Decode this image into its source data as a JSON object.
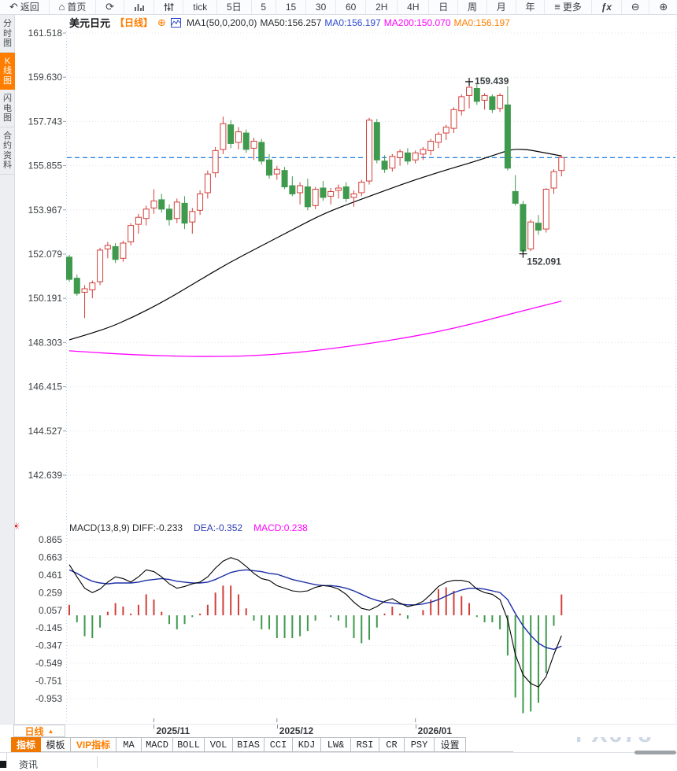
{
  "toolbar": {
    "items": [
      {
        "name": "back",
        "glyph": "↶",
        "label": "返回"
      },
      {
        "name": "home",
        "glyph": "⌂",
        "label": "首页"
      },
      {
        "name": "refresh",
        "glyph": "⟳"
      },
      {
        "name": "chart-bars",
        "glyph": "#bars"
      },
      {
        "name": "indicator-sliders",
        "glyph": "#sliders"
      },
      {
        "name": "interval-tick",
        "label": "tick"
      },
      {
        "name": "interval-5d",
        "label": "5日"
      },
      {
        "name": "interval-5m",
        "label": "5"
      },
      {
        "name": "interval-15m",
        "label": "15"
      },
      {
        "name": "interval-30m",
        "label": "30"
      },
      {
        "name": "interval-60m",
        "label": "60"
      },
      {
        "name": "interval-2h",
        "label": "2H"
      },
      {
        "name": "interval-4h",
        "label": "4H"
      },
      {
        "name": "interval-day",
        "label": "日"
      },
      {
        "name": "interval-week",
        "label": "周"
      },
      {
        "name": "interval-month",
        "label": "月"
      },
      {
        "name": "interval-year",
        "label": "年"
      },
      {
        "name": "more",
        "glyph": "≡",
        "label": "更多"
      },
      {
        "name": "fx-formula",
        "glyph": "#fx"
      },
      {
        "name": "zoom-out",
        "glyph": "⊖"
      },
      {
        "name": "zoom-in",
        "glyph": "⊕"
      }
    ]
  },
  "sidebar": {
    "items": [
      {
        "name": "time-share-chart",
        "label": "分时图",
        "active": false
      },
      {
        "name": "kline-chart",
        "label": "K线图",
        "active": true
      },
      {
        "name": "lightning-chart",
        "label": "闪电图",
        "active": false
      },
      {
        "name": "contract-info",
        "label": "合约资料",
        "active": false
      }
    ]
  },
  "chart_header": {
    "symbol": "美元日元",
    "period": "【日线】",
    "add_icon": "⊕",
    "segments": [
      {
        "text": "MA1(50,0,200,0)",
        "color": "#2b2f33"
      },
      {
        "text": "MA50:156.257",
        "color": "#2b2f33"
      },
      {
        "text": "MA0:156.197",
        "color": "#2f4bd0"
      },
      {
        "text": "MA200:150.070",
        "color": "#ff00ff"
      },
      {
        "text": "MA0:156.197",
        "color": "#ff7e00"
      }
    ]
  },
  "macd_header": {
    "icon": "☀",
    "segments": [
      {
        "text": "MACD(13,8,9) DIFF:-0.233",
        "color": "#2b2f33"
      },
      {
        "text": "DEA:-0.352",
        "color": "#2f3db0"
      },
      {
        "text": "MACD:0.238",
        "color": "#ff00ff"
      }
    ]
  },
  "chart_data": {
    "type": "candlestick",
    "title": "美元日元 日线 (USD/JPY daily with MA50/MA200 and MACD(13,8,9))",
    "y_axis": {
      "labels": [
        "161.518",
        "159.630",
        "157.743",
        "155.855",
        "153.967",
        "152.079",
        "150.191",
        "148.303",
        "146.415",
        "144.527",
        "142.639"
      ],
      "max": 161.518,
      "min": 142.639
    },
    "price_line": 156.197,
    "candles": [
      [
        151.95,
        152.05,
        150.9,
        151.0
      ],
      [
        151.05,
        151.2,
        150.3,
        150.4
      ],
      [
        150.45,
        150.75,
        149.35,
        150.6
      ],
      [
        150.55,
        150.95,
        150.2,
        150.85
      ],
      [
        150.9,
        152.35,
        150.75,
        152.25
      ],
      [
        152.3,
        152.6,
        151.9,
        152.45
      ],
      [
        152.4,
        152.55,
        151.7,
        151.85
      ],
      [
        151.9,
        152.65,
        151.75,
        152.55
      ],
      [
        152.6,
        153.4,
        152.45,
        153.3
      ],
      [
        153.35,
        153.8,
        152.95,
        153.65
      ],
      [
        153.6,
        154.15,
        153.3,
        154.0
      ],
      [
        154.05,
        154.85,
        153.8,
        154.35
      ],
      [
        154.4,
        154.65,
        153.85,
        154.0
      ],
      [
        154.0,
        154.2,
        153.3,
        153.55
      ],
      [
        153.6,
        154.45,
        153.4,
        154.3
      ],
      [
        154.25,
        154.55,
        153.15,
        153.4
      ],
      [
        153.45,
        154.05,
        152.95,
        153.9
      ],
      [
        153.95,
        154.8,
        153.75,
        154.65
      ],
      [
        154.7,
        155.65,
        154.45,
        155.5
      ],
      [
        155.55,
        156.65,
        155.35,
        156.5
      ],
      [
        156.55,
        157.95,
        156.35,
        157.65
      ],
      [
        157.6,
        157.8,
        156.6,
        156.8
      ],
      [
        156.85,
        157.5,
        156.55,
        157.3
      ],
      [
        157.25,
        157.4,
        156.4,
        156.55
      ],
      [
        156.6,
        157.05,
        156.1,
        156.9
      ],
      [
        156.85,
        157.0,
        155.9,
        156.05
      ],
      [
        156.1,
        156.35,
        155.3,
        155.45
      ],
      [
        155.5,
        155.85,
        155.25,
        155.7
      ],
      [
        155.65,
        155.8,
        154.85,
        154.95
      ],
      [
        155.0,
        155.4,
        154.55,
        154.65
      ],
      [
        154.7,
        155.15,
        154.2,
        155.0
      ],
      [
        154.95,
        155.3,
        153.95,
        154.1
      ],
      [
        154.15,
        154.95,
        154.0,
        154.85
      ],
      [
        154.9,
        155.2,
        154.35,
        154.5
      ],
      [
        154.55,
        154.9,
        154.2,
        154.75
      ],
      [
        154.8,
        155.05,
        154.45,
        154.9
      ],
      [
        154.95,
        155.15,
        154.3,
        154.45
      ],
      [
        154.5,
        154.8,
        154.1,
        154.65
      ],
      [
        154.7,
        155.25,
        154.55,
        155.15
      ],
      [
        155.2,
        157.9,
        155.05,
        157.8
      ],
      [
        157.7,
        157.85,
        155.95,
        156.1
      ],
      [
        156.05,
        156.3,
        155.55,
        155.7
      ],
      [
        155.75,
        156.35,
        155.6,
        156.25
      ],
      [
        156.2,
        156.55,
        155.85,
        156.45
      ],
      [
        156.4,
        156.6,
        155.9,
        156.05
      ],
      [
        156.1,
        156.5,
        155.95,
        156.4
      ],
      [
        156.35,
        156.65,
        156.1,
        156.55
      ],
      [
        156.5,
        157.0,
        156.3,
        156.9
      ],
      [
        156.85,
        157.3,
        156.6,
        157.2
      ],
      [
        157.25,
        157.6,
        156.95,
        157.5
      ],
      [
        157.45,
        158.35,
        157.25,
        158.25
      ],
      [
        158.2,
        158.9,
        158.0,
        158.8
      ],
      [
        158.85,
        159.44,
        158.3,
        159.2
      ],
      [
        159.15,
        159.35,
        158.45,
        158.6
      ],
      [
        158.65,
        158.95,
        158.25,
        158.85
      ],
      [
        158.8,
        158.9,
        158.1,
        158.25
      ],
      [
        158.3,
        158.95,
        158.15,
        158.85
      ],
      [
        158.45,
        159.25,
        155.65,
        155.75
      ],
      [
        154.75,
        155.45,
        154.15,
        154.25
      ],
      [
        154.2,
        154.35,
        152.09,
        152.21
      ],
      [
        152.3,
        153.55,
        152.2,
        153.45
      ],
      [
        153.4,
        153.75,
        152.9,
        153.1
      ],
      [
        153.15,
        154.9,
        153.0,
        154.85
      ],
      [
        154.9,
        155.7,
        154.65,
        155.6
      ],
      [
        155.65,
        156.3,
        155.4,
        156.2
      ]
    ],
    "high_annotation": {
      "value": "159.439",
      "index": 52,
      "price": 159.44
    },
    "low_annotation": {
      "value": "152.091",
      "index": 59,
      "price": 152.09
    },
    "ma50_points": [
      [
        0,
        148.42
      ],
      [
        4.3,
        148.82
      ],
      [
        8.4,
        149.4
      ],
      [
        12.5,
        150.1
      ],
      [
        16.6,
        150.9
      ],
      [
        20.7,
        151.7
      ],
      [
        24.8,
        152.4
      ],
      [
        28.9,
        153.1
      ],
      [
        33,
        153.8
      ],
      [
        37.1,
        154.32
      ],
      [
        41.1,
        154.8
      ],
      [
        45.2,
        155.28
      ],
      [
        49.3,
        155.7
      ],
      [
        52.4,
        156.0
      ],
      [
        55,
        156.28
      ],
      [
        57,
        156.5
      ],
      [
        58,
        156.56
      ],
      [
        59.6,
        156.54
      ],
      [
        61.6,
        156.42
      ],
      [
        64,
        156.27
      ]
    ],
    "ma200_points": [
      [
        0,
        147.95
      ],
      [
        5.3,
        147.83
      ],
      [
        11.5,
        147.74
      ],
      [
        17.6,
        147.7
      ],
      [
        23.7,
        147.73
      ],
      [
        29.9,
        147.88
      ],
      [
        36,
        148.12
      ],
      [
        42.2,
        148.42
      ],
      [
        47.3,
        148.72
      ],
      [
        52.4,
        149.1
      ],
      [
        56.5,
        149.45
      ],
      [
        60.1,
        149.75
      ],
      [
        64,
        150.07
      ]
    ],
    "macd": {
      "labels": [
        "0.865",
        "0.663",
        "0.461",
        "0.259",
        "0.057",
        "-0.145",
        "-0.347",
        "-0.549",
        "-0.751",
        "-0.953"
      ],
      "max": 0.865,
      "min": -0.953,
      "bar_rule": "2*(diff-dea)",
      "diff": [
        0.58,
        0.44,
        0.31,
        0.26,
        0.3,
        0.38,
        0.44,
        0.42,
        0.38,
        0.44,
        0.52,
        0.5,
        0.44,
        0.36,
        0.31,
        0.33,
        0.36,
        0.38,
        0.44,
        0.54,
        0.62,
        0.66,
        0.63,
        0.56,
        0.48,
        0.42,
        0.4,
        0.34,
        0.31,
        0.28,
        0.27,
        0.28,
        0.32,
        0.34,
        0.33,
        0.3,
        0.24,
        0.15,
        0.08,
        0.06,
        0.1,
        0.16,
        0.19,
        0.14,
        0.1,
        0.12,
        0.16,
        0.24,
        0.33,
        0.38,
        0.4,
        0.4,
        0.38,
        0.3,
        0.26,
        0.24,
        0.18,
        -0.05,
        -0.45,
        -0.68,
        -0.78,
        -0.82,
        -0.7,
        -0.45,
        -0.233
      ],
      "dea": [
        0.52,
        0.48,
        0.43,
        0.39,
        0.37,
        0.36,
        0.37,
        0.37,
        0.37,
        0.38,
        0.4,
        0.41,
        0.42,
        0.41,
        0.39,
        0.38,
        0.37,
        0.37,
        0.38,
        0.41,
        0.45,
        0.49,
        0.51,
        0.52,
        0.51,
        0.5,
        0.48,
        0.47,
        0.44,
        0.41,
        0.39,
        0.37,
        0.35,
        0.34,
        0.34,
        0.33,
        0.31,
        0.28,
        0.24,
        0.2,
        0.17,
        0.15,
        0.14,
        0.13,
        0.12,
        0.12,
        0.13,
        0.15,
        0.18,
        0.22,
        0.26,
        0.29,
        0.31,
        0.31,
        0.3,
        0.28,
        0.26,
        0.18,
        0.02,
        -0.12,
        -0.23,
        -0.32,
        -0.37,
        -0.39,
        -0.352
      ]
    },
    "x_axis": {
      "ticks": [
        {
          "label": "2025/11",
          "index": 11
        },
        {
          "label": "2025/12",
          "index": 27
        },
        {
          "label": "2026/01",
          "index": 45
        }
      ]
    }
  },
  "bottom": {
    "period_button": {
      "label": "日线",
      "arrow": "▲"
    },
    "tabs": [
      {
        "label": "指标",
        "active": true
      },
      {
        "label": "模板"
      },
      {
        "label": "VIP指标",
        "vip": true
      },
      {
        "label": "MA"
      },
      {
        "label": "MACD"
      },
      {
        "label": "BOLL"
      },
      {
        "label": "VOL"
      },
      {
        "label": "BIAS"
      },
      {
        "label": "CCI"
      },
      {
        "label": "KDJ"
      },
      {
        "label": "LW&"
      },
      {
        "label": "RSI"
      },
      {
        "label": "CR"
      },
      {
        "label": "PSY"
      },
      {
        "label": "设置"
      }
    ],
    "watermark": "FX678",
    "news_tab": "资讯"
  },
  "colors": {
    "candle_up": "#d23f3a",
    "candle_down": "#3f9a4e",
    "ma50": "#000000",
    "ma200": "#ff00ff",
    "diff": "#000000",
    "dea": "#1c2fa6",
    "price_line": "#1e7fe0",
    "grid": "#e0e3e7",
    "edge_dots": "#b9d7f0",
    "accent_orange": "#ff7e00",
    "annotation_high": "#d23f3a",
    "annotation_low": "#3f9a4e"
  }
}
